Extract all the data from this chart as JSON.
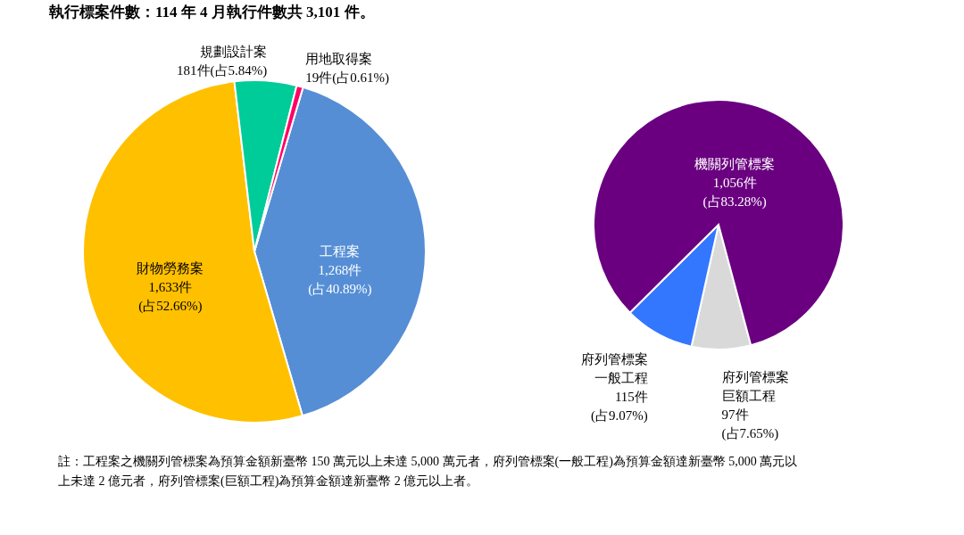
{
  "chart_data": [
    {
      "type": "pie",
      "title": "執行標案件數：114 年 4 月執行件數共 3,101 件。",
      "categories": [
        "工程案",
        "財物勞務案",
        "規劃設計案",
        "用地取得案"
      ],
      "values": [
        1268,
        1633,
        181,
        19
      ],
      "colors": [
        "#558ed5",
        "#ffc000",
        "#00cc99",
        "#ff0066"
      ],
      "value_labels": [
        "1,268件\n(占40.89%)",
        "1,633件\n(占52.66%)",
        "181件(占5.84%)",
        "19件(占0.61%)"
      ],
      "annotations": [
        "註：工程案之機關列管標案為預算金額新臺幣 150 萬元以上未達 5,000 萬元者，府列管標案(一般工程)為預算金額達新臺幣 5,000 萬元以上未達 2 億元者，府列管標案(巨額工程)為預算金額達新臺幣 2 億元以上者。"
      ]
    },
    {
      "type": "pie",
      "categories": [
        "府列管標案巨額工程",
        "府列管標案一般工程",
        "機關列管標案"
      ],
      "values": [
        97,
        115,
        1056
      ],
      "colors": [
        "#d9d9d9",
        "#3377ff",
        "#6a0080"
      ],
      "value_labels": [
        "97件\n(占7.65%)",
        "115件\n(占9.07%)",
        "1,056件\n(占83.28%)"
      ]
    }
  ]
}
